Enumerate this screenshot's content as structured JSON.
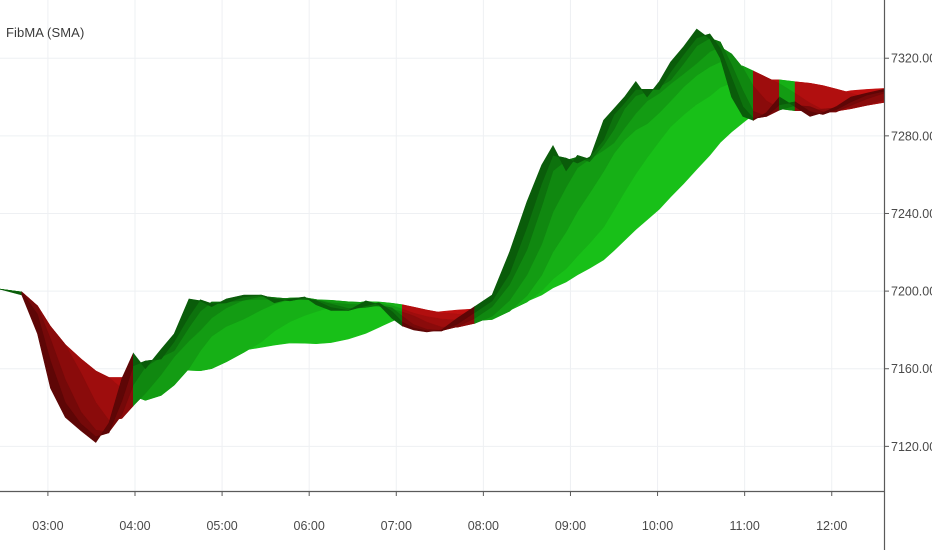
{
  "indicator": {
    "title": "FibMA (SMA)"
  },
  "colors": {
    "up": "#12c812",
    "down": "#cc1111",
    "grid": "#eef0f3",
    "axis": "#5a5a5a",
    "background": "#ffffff"
  },
  "chart_data": {
    "type": "area",
    "title": "FibMA (SMA)",
    "xlabel": "",
    "ylabel": "",
    "grid": true,
    "xlim": [
      2.45,
      12.6
    ],
    "ylim": [
      7097,
      7350
    ],
    "x_ticks": [
      3,
      4,
      5,
      6,
      7,
      8,
      9,
      10,
      11,
      12
    ],
    "x_tick_labels": [
      "03:00",
      "04:00",
      "05:00",
      "06:00",
      "07:00",
      "08:00",
      "09:00",
      "10:00",
      "11:00",
      "12:00"
    ],
    "y_ticks": [
      7120,
      7160,
      7200,
      7240,
      7280,
      7320
    ],
    "y_tick_labels": [
      "7120.00",
      "7160.00",
      "7200.00",
      "7240.00",
      "7280.00",
      "7320.00"
    ],
    "series": [
      {
        "x": [
          2.45,
          2.7,
          2.88,
          3.03,
          3.2,
          3.38,
          3.55,
          3.7,
          3.85,
          3.98,
          4.12,
          4.3,
          4.45,
          4.62,
          4.75,
          4.88,
          5.05,
          5.25,
          5.45,
          5.6,
          5.78,
          5.95,
          6.08,
          6.25,
          6.45,
          6.65,
          6.8,
          6.95,
          7.07,
          7.2,
          7.35,
          7.52,
          7.7,
          7.9,
          8.1,
          8.3,
          8.5,
          8.67,
          8.8,
          8.95,
          9.08,
          9.22,
          9.38,
          9.5,
          9.62,
          9.75,
          9.88,
          10.02,
          10.15,
          10.3,
          10.45,
          10.6,
          10.72,
          10.85,
          10.98,
          11.1,
          11.25,
          11.4,
          11.58,
          11.75,
          11.9,
          12.05,
          12.22,
          12.4,
          12.6
        ],
        "y": [
          7201,
          7198,
          7178,
          7150,
          7135,
          7128,
          7122,
          7132,
          7155,
          7168,
          7160,
          7170,
          7178,
          7196,
          7195,
          7192,
          7196,
          7198,
          7198,
          7194,
          7196,
          7197,
          7193,
          7190,
          7190,
          7195,
          7193,
          7186,
          7182,
          7180,
          7179,
          7180,
          7186,
          7192,
          7198,
          7220,
          7246,
          7265,
          7275,
          7262,
          7270,
          7268,
          7288,
          7294,
          7300,
          7308,
          7300,
          7308,
          7318,
          7326,
          7335,
          7330,
          7320,
          7300,
          7290,
          7288,
          7292,
          7300,
          7295,
          7290,
          7292,
          7295,
          7300,
          7302,
          7304
        ]
      }
    ],
    "bands_note": "Seven Fibonacci-period moving averages; ribbon shown green where price is above them and red where below."
  }
}
